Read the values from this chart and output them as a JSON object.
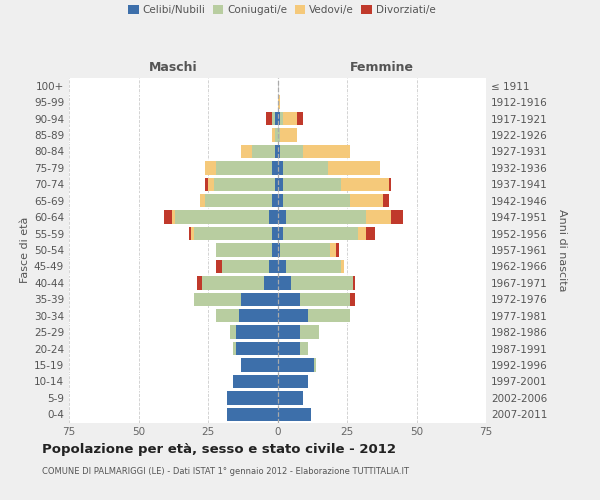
{
  "age_groups": [
    "0-4",
    "5-9",
    "10-14",
    "15-19",
    "20-24",
    "25-29",
    "30-34",
    "35-39",
    "40-44",
    "45-49",
    "50-54",
    "55-59",
    "60-64",
    "65-69",
    "70-74",
    "75-79",
    "80-84",
    "85-89",
    "90-94",
    "95-99",
    "100+"
  ],
  "birth_years": [
    "2007-2011",
    "2002-2006",
    "1997-2001",
    "1992-1996",
    "1987-1991",
    "1982-1986",
    "1977-1981",
    "1972-1976",
    "1967-1971",
    "1962-1966",
    "1957-1961",
    "1952-1956",
    "1947-1951",
    "1942-1946",
    "1937-1941",
    "1932-1936",
    "1927-1931",
    "1922-1926",
    "1917-1921",
    "1912-1916",
    "≤ 1911"
  ],
  "males": {
    "celibi": [
      18,
      18,
      16,
      13,
      15,
      15,
      14,
      13,
      5,
      3,
      2,
      2,
      3,
      2,
      1,
      2,
      1,
      0,
      1,
      0,
      0
    ],
    "coniugati": [
      0,
      0,
      0,
      0,
      1,
      2,
      8,
      17,
      22,
      17,
      20,
      28,
      34,
      24,
      22,
      20,
      8,
      1,
      1,
      0,
      0
    ],
    "vedovi": [
      0,
      0,
      0,
      0,
      0,
      0,
      0,
      0,
      0,
      0,
      0,
      1,
      1,
      2,
      2,
      4,
      4,
      1,
      0,
      0,
      0
    ],
    "divorziati": [
      0,
      0,
      0,
      0,
      0,
      0,
      0,
      0,
      2,
      2,
      0,
      1,
      3,
      0,
      1,
      0,
      0,
      0,
      2,
      0,
      0
    ]
  },
  "females": {
    "nubili": [
      12,
      9,
      11,
      13,
      8,
      8,
      11,
      8,
      5,
      3,
      1,
      2,
      3,
      2,
      2,
      2,
      1,
      0,
      1,
      0,
      0
    ],
    "coniugate": [
      0,
      0,
      0,
      1,
      3,
      7,
      15,
      18,
      22,
      20,
      18,
      27,
      29,
      24,
      21,
      16,
      8,
      1,
      1,
      0,
      0
    ],
    "vedove": [
      0,
      0,
      0,
      0,
      0,
      0,
      0,
      0,
      0,
      1,
      2,
      3,
      9,
      12,
      17,
      19,
      17,
      6,
      5,
      1,
      0
    ],
    "divorziate": [
      0,
      0,
      0,
      0,
      0,
      0,
      0,
      2,
      1,
      0,
      1,
      3,
      4,
      2,
      1,
      0,
      0,
      0,
      2,
      0,
      0
    ]
  },
  "colors": {
    "celibi": "#3d6faa",
    "coniugati": "#b8cda0",
    "vedovi": "#f5c97a",
    "divorziati": "#c0392b"
  },
  "title": "Popolazione per età, sesso e stato civile - 2012",
  "subtitle": "COMUNE DI PALMARIGGI (LE) - Dati ISTAT 1° gennaio 2012 - Elaborazione TUTTITALIA.IT",
  "xlabel_left": "Maschi",
  "xlabel_right": "Femmine",
  "ylabel_left": "Fasce di età",
  "ylabel_right": "Anni di nascita",
  "xlim": 75,
  "background_color": "#efefef",
  "plot_bg": "#ffffff",
  "grid_color": "#cccccc"
}
